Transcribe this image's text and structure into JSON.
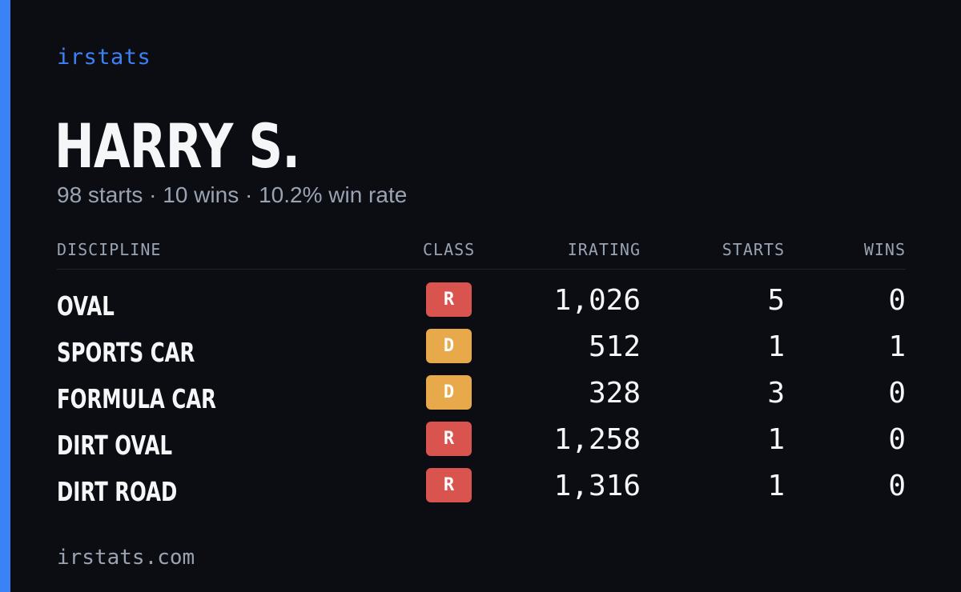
{
  "brand": "irstats",
  "driver": {
    "name": "HARRY S.",
    "summary": "98 starts · 10 wins · 10.2% win rate"
  },
  "table": {
    "headers": {
      "discipline": "DISCIPLINE",
      "class": "CLASS",
      "irating": "IRATING",
      "starts": "STARTS",
      "wins": "WINS"
    },
    "rows": [
      {
        "discipline": "OVAL",
        "class": "R",
        "class_color": "#d9534f",
        "irating": "1,026",
        "starts": "5",
        "wins": "0"
      },
      {
        "discipline": "SPORTS CAR",
        "class": "D",
        "class_color": "#e8a94a",
        "irating": "512",
        "starts": "1",
        "wins": "1"
      },
      {
        "discipline": "FORMULA CAR",
        "class": "D",
        "class_color": "#e8a94a",
        "irating": "328",
        "starts": "3",
        "wins": "0"
      },
      {
        "discipline": "DIRT OVAL",
        "class": "R",
        "class_color": "#d9534f",
        "irating": "1,258",
        "starts": "1",
        "wins": "0"
      },
      {
        "discipline": "DIRT ROAD",
        "class": "R",
        "class_color": "#d9534f",
        "irating": "1,316",
        "starts": "1",
        "wins": "0"
      }
    ]
  },
  "footer": "irstats.com",
  "colors": {
    "accent": "#3b82f6",
    "background": "#0b0d13",
    "muted_text": "#9aa3b2",
    "class_r": "#d9534f",
    "class_d": "#e8a94a"
  }
}
